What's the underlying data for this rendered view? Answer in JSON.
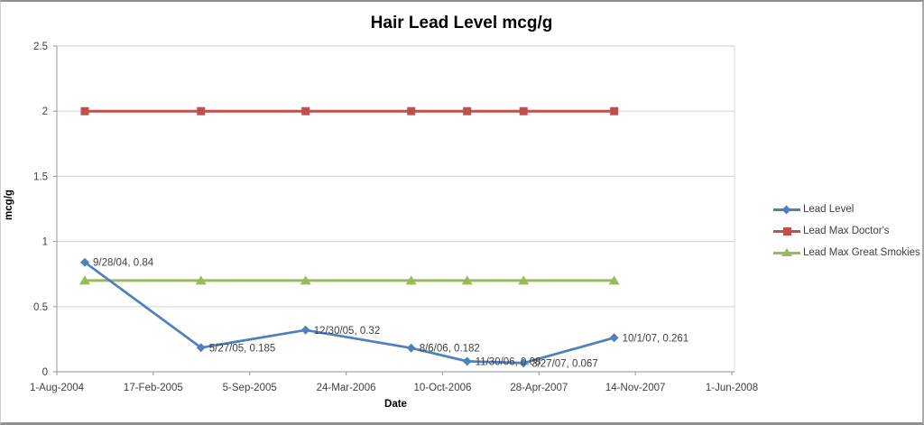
{
  "chart_data": {
    "type": "line",
    "title": "Hair Lead Level mcg/g",
    "xlabel": "Date",
    "ylabel": "mcg/g",
    "grid": "horizontal-on",
    "legend_position": "right",
    "x_axis": {
      "kind": "date",
      "range_days": [
        0,
        1400
      ],
      "tick_days": [
        0,
        200,
        400,
        600,
        800,
        1000,
        1200,
        1400
      ],
      "tick_labels": [
        "1-Aug-2004",
        "17-Feb-2005",
        "5-Sep-2005",
        "24-Mar-2006",
        "10-Oct-2006",
        "28-Apr-2007",
        "14-Nov-2007",
        "1-Jun-2008"
      ]
    },
    "y_axis": {
      "range": [
        0,
        2.5
      ],
      "ticks": [
        0,
        0.5,
        1,
        1.5,
        2,
        2.5
      ],
      "tick_labels": [
        "0",
        "0.5",
        "1",
        "1.5",
        "2",
        "2.5"
      ]
    },
    "series": [
      {
        "name": "Lead Level",
        "color": "#4F81BD",
        "marker": "diamond",
        "points": [
          {
            "date": "9/28/04",
            "days": 58,
            "value": 0.84,
            "label": "9/28/04, 0.84"
          },
          {
            "date": "5/27/05",
            "days": 299,
            "value": 0.185,
            "label": "5/27/05, 0.185"
          },
          {
            "date": "12/30/05",
            "days": 516,
            "value": 0.32,
            "label": "12/30/05, 0.32"
          },
          {
            "date": "8/6/06",
            "days": 735,
            "value": 0.182,
            "label": "8/6/06, 0.182"
          },
          {
            "date": "11/30/06",
            "days": 851,
            "value": 0.08,
            "label": "11/30/06, 0.08"
          },
          {
            "date": "3/27/07",
            "days": 968,
            "value": 0.067,
            "label": "3/27/07, 0.067"
          },
          {
            "date": "10/1/07",
            "days": 1156,
            "value": 0.261,
            "label": "10/1/07, 0.261"
          }
        ]
      },
      {
        "name": "Lead Max Doctor's",
        "color": "#C0504D",
        "marker": "square",
        "points": [
          {
            "date": "9/28/04",
            "days": 58,
            "value": 2
          },
          {
            "date": "5/27/05",
            "days": 299,
            "value": 2
          },
          {
            "date": "12/30/05",
            "days": 516,
            "value": 2
          },
          {
            "date": "8/6/06",
            "days": 735,
            "value": 2
          },
          {
            "date": "11/30/06",
            "days": 851,
            "value": 2
          },
          {
            "date": "3/27/07",
            "days": 968,
            "value": 2
          },
          {
            "date": "10/1/07",
            "days": 1156,
            "value": 2
          }
        ]
      },
      {
        "name": "Lead Max Great Smokies",
        "color": "#9BBB59",
        "marker": "triangle",
        "points": [
          {
            "date": "9/28/04",
            "days": 58,
            "value": 0.7
          },
          {
            "date": "5/27/05",
            "days": 299,
            "value": 0.7
          },
          {
            "date": "12/30/05",
            "days": 516,
            "value": 0.7
          },
          {
            "date": "8/6/06",
            "days": 735,
            "value": 0.7
          },
          {
            "date": "11/30/06",
            "days": 851,
            "value": 0.7
          },
          {
            "date": "3/27/07",
            "days": 968,
            "value": 0.7
          },
          {
            "date": "10/1/07",
            "days": 1156,
            "value": 0.7
          }
        ]
      }
    ],
    "style": {
      "gridline_color": "#d9d9d9",
      "axis_color": "#a6a6a6",
      "tick_text_color": "#3f3f3f",
      "data_label_color": "#3f3f3f"
    }
  }
}
